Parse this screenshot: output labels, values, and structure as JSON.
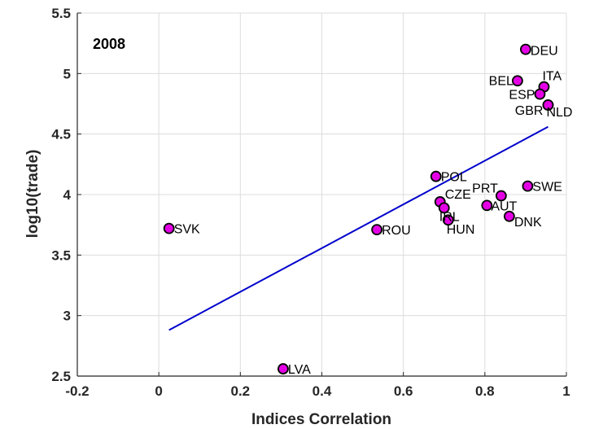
{
  "chart_data": {
    "type": "scatter",
    "title": "",
    "annotation": "2008",
    "xlabel": "Indices Correlation",
    "ylabel": "log10(trade)",
    "xlim": [
      -0.2,
      1
    ],
    "ylim": [
      2.5,
      5.5
    ],
    "xticks": [
      -0.2,
      0,
      0.2,
      0.4,
      0.6,
      0.8,
      1
    ],
    "xtick_labels": [
      "-0.2",
      "0",
      "0.2",
      "0.4",
      "0.6",
      "0.8",
      "1"
    ],
    "yticks": [
      2.5,
      3,
      3.5,
      4,
      4.5,
      5,
      5.5
    ],
    "ytick_labels": [
      "2.5",
      "3",
      "3.5",
      "4",
      "4.5",
      "5",
      "5.5"
    ],
    "grid": true,
    "points": [
      {
        "label": "DEU",
        "x": 0.9,
        "y": 5.2
      },
      {
        "label": "BEL",
        "x": 0.88,
        "y": 4.94
      },
      {
        "label": "ITA",
        "x": 0.945,
        "y": 4.89
      },
      {
        "label": "ESP",
        "x": 0.935,
        "y": 4.83
      },
      {
        "label": "GBR",
        "x": 0.955,
        "y": 4.74
      },
      {
        "label": "NLD",
        "x": 0.955,
        "y": 4.74
      },
      {
        "label": "POL",
        "x": 0.68,
        "y": 4.15
      },
      {
        "label": "SWE",
        "x": 0.905,
        "y": 4.07
      },
      {
        "label": "PRT",
        "x": 0.84,
        "y": 3.99
      },
      {
        "label": "CZE",
        "x": 0.69,
        "y": 3.94
      },
      {
        "label": "AUT",
        "x": 0.805,
        "y": 3.91
      },
      {
        "label": "IRL",
        "x": 0.7,
        "y": 3.89
      },
      {
        "label": "DNK",
        "x": 0.86,
        "y": 3.82
      },
      {
        "label": "HUN",
        "x": 0.71,
        "y": 3.79
      },
      {
        "label": "SVK",
        "x": 0.025,
        "y": 3.72
      },
      {
        "label": "ROU",
        "x": 0.535,
        "y": 3.71
      },
      {
        "label": "LVA",
        "x": 0.305,
        "y": 2.56
      }
    ],
    "fit_line": {
      "x": [
        0.025,
        0.955
      ],
      "y": [
        2.88,
        4.56
      ]
    },
    "colors": {
      "marker_fill": "#e400e4",
      "marker_edge": "#000000",
      "fit_line": "#0000cc",
      "grid": "#dcdcdc",
      "axes": "#262626"
    }
  }
}
